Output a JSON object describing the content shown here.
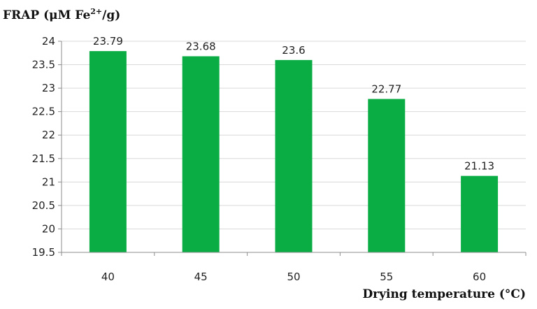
{
  "chart_data": {
    "type": "bar",
    "ylabel_main": "FRAP (μM Fe",
    "ylabel_sup": "2+",
    "ylabel_tail": "/g)",
    "xlabel": "Drying temperature (°C)",
    "categories": [
      "40",
      "45",
      "50",
      "55",
      "60"
    ],
    "values": [
      23.79,
      23.68,
      23.6,
      22.77,
      21.13
    ],
    "value_labels": [
      "23.79",
      "23.68",
      "23.6",
      "22.77",
      "21.13"
    ],
    "ylim": [
      19.5,
      24
    ],
    "yticks": [
      "19.5",
      "20",
      "20.5",
      "21",
      "21.5",
      "22",
      "22.5",
      "23",
      "23.5",
      "24"
    ],
    "grid": true,
    "legend": "none",
    "bar_color": "#0aac44",
    "grid_color": "#d9d9d9"
  }
}
